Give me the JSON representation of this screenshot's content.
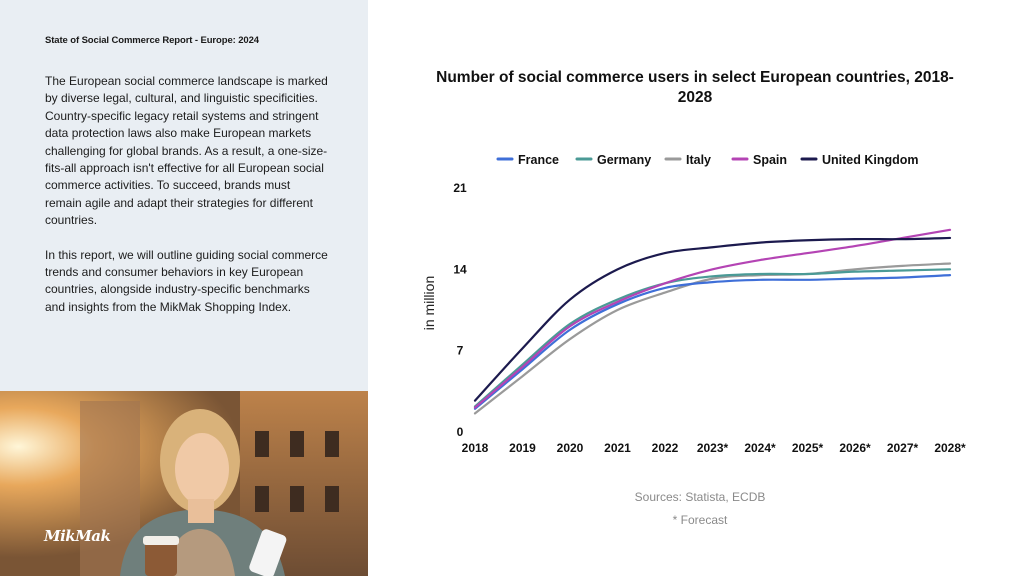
{
  "report": {
    "title": "State of Social Commerce Report - Europe: 2024",
    "paragraphs": [
      "The European social commerce landscape is marked by diverse legal, cultural, and linguistic specificities. Country-specific legacy retail systems and stringent data protection laws also make European markets challenging for global brands. As a result, a one-size-fits-all approach isn't effective for all European social commerce activities. To succeed, brands must remain agile and adapt their strategies for different countries.",
      "In this report, we will outline guiding social commerce trends and consumer behaviors in key European countries, alongside industry-specific benchmarks and insights from the MikMak Shopping Index."
    ],
    "logo_text": "MikMak"
  },
  "chart_data": {
    "type": "line",
    "title": "Number of social commerce users in select European countries, 2018-2028",
    "ylabel": "in million",
    "xlabel": "",
    "ylim": [
      0,
      21
    ],
    "yticks": [
      0,
      7,
      14,
      21
    ],
    "grid": false,
    "legend_position": "top",
    "x": [
      "2018",
      "2019",
      "2020",
      "2021",
      "2022",
      "2023*",
      "2024*",
      "2025*",
      "2026*",
      "2027*",
      "2028*"
    ],
    "series": [
      {
        "name": "France",
        "color": "#3f6fd8",
        "values": [
          2.0,
          5.4,
          8.8,
          11.0,
          12.4,
          12.9,
          13.1,
          13.1,
          13.2,
          13.3,
          13.5
        ]
      },
      {
        "name": "Germany",
        "color": "#4a9a96",
        "values": [
          2.2,
          5.8,
          9.3,
          11.4,
          12.8,
          13.4,
          13.6,
          13.6,
          13.8,
          13.9,
          14.0
        ]
      },
      {
        "name": "Italy",
        "color": "#9a9a9a",
        "values": [
          1.6,
          4.8,
          8.0,
          10.5,
          12.0,
          13.2,
          13.5,
          13.6,
          14.0,
          14.3,
          14.5
        ]
      },
      {
        "name": "Spain",
        "color": "#b444b4",
        "values": [
          2.1,
          5.6,
          9.1,
          11.2,
          12.8,
          14.0,
          14.8,
          15.4,
          16.0,
          16.7,
          17.4
        ]
      },
      {
        "name": "United Kingdom",
        "color": "#1c1a4e",
        "values": [
          2.7,
          7.2,
          11.4,
          14.0,
          15.4,
          15.9,
          16.3,
          16.5,
          16.6,
          16.6,
          16.7
        ]
      }
    ],
    "source": "Sources: Statista, ECDB",
    "footnote": "* Forecast"
  }
}
